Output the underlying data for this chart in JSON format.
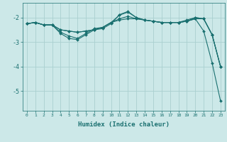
{
  "xlabel": "Humidex (Indice chaleur)",
  "bg_color": "#cce8e8",
  "line_color": "#1a7070",
  "grid_color": "#aad0d0",
  "xlim": [
    -0.5,
    23.5
  ],
  "ylim": [
    -5.8,
    -1.4
  ],
  "yticks": [
    -5,
    -4,
    -3,
    -2
  ],
  "xticks": [
    0,
    1,
    2,
    3,
    4,
    5,
    6,
    7,
    8,
    9,
    10,
    11,
    12,
    13,
    14,
    15,
    16,
    17,
    18,
    19,
    20,
    21,
    22,
    23
  ],
  "line1_x": [
    0,
    1,
    2,
    3,
    4,
    5,
    6,
    7,
    8,
    9,
    10,
    11,
    12,
    13,
    14,
    15,
    16,
    17,
    18,
    19,
    20,
    21,
    22,
    23
  ],
  "line1_y": [
    -2.25,
    -2.2,
    -2.3,
    -2.3,
    -2.5,
    -2.55,
    -2.6,
    -2.55,
    -2.5,
    -2.4,
    -2.2,
    -2.1,
    -2.05,
    -2.05,
    -2.1,
    -2.15,
    -2.2,
    -2.2,
    -2.2,
    -2.15,
    -2.05,
    -2.05,
    -2.7,
    -4.0
  ],
  "line2_x": [
    0,
    1,
    2,
    3,
    4,
    5,
    6,
    7,
    8,
    9,
    10,
    11,
    12,
    13,
    14,
    15,
    16,
    17,
    18,
    19,
    20,
    21,
    22,
    23
  ],
  "line2_y": [
    -2.25,
    -2.2,
    -2.3,
    -2.3,
    -2.5,
    -2.55,
    -2.6,
    -2.55,
    -2.5,
    -2.4,
    -2.2,
    -2.05,
    -1.95,
    -2.05,
    -2.1,
    -2.15,
    -2.2,
    -2.2,
    -2.2,
    -2.15,
    -2.05,
    -2.55,
    -3.85,
    -5.4
  ],
  "line3_x": [
    0,
    1,
    2,
    3,
    4,
    5,
    6,
    7,
    8,
    9,
    10,
    11,
    12,
    13,
    14,
    15,
    16,
    17,
    18,
    19,
    20,
    21,
    22,
    23
  ],
  "line3_y": [
    -2.25,
    -2.2,
    -2.3,
    -2.3,
    -2.6,
    -2.75,
    -2.85,
    -2.65,
    -2.45,
    -2.4,
    -2.2,
    -1.9,
    -1.78,
    -2.0,
    -2.1,
    -2.15,
    -2.2,
    -2.2,
    -2.2,
    -2.15,
    -2.0,
    -2.05,
    -2.7,
    -4.0
  ],
  "line4_x": [
    0,
    1,
    2,
    3,
    4,
    5,
    6,
    7,
    8,
    9,
    10,
    11,
    12,
    13,
    14,
    15,
    16,
    17,
    18,
    19,
    20,
    21,
    22,
    23
  ],
  "line4_y": [
    -2.25,
    -2.2,
    -2.3,
    -2.3,
    -2.65,
    -2.85,
    -2.9,
    -2.7,
    -2.5,
    -2.45,
    -2.25,
    -1.88,
    -1.75,
    -2.0,
    -2.1,
    -2.15,
    -2.2,
    -2.2,
    -2.2,
    -2.1,
    -2.0,
    -2.05,
    -2.7,
    -4.0
  ]
}
